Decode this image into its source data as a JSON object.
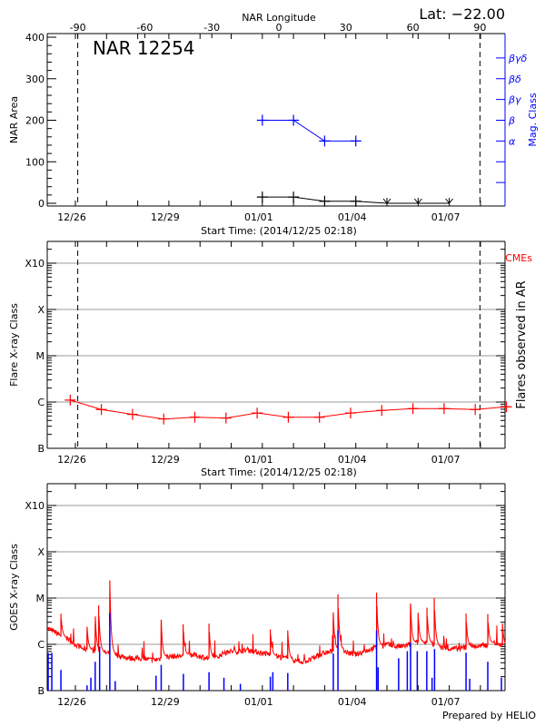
{
  "header": {
    "lat_label": "Lat: −22.00",
    "lon_axis_title": "NAR Longitude",
    "nar_title": "NAR 12254"
  },
  "footer": {
    "credit": "Prepared by HELIO"
  },
  "colors": {
    "area": "#000000",
    "mag_class": "#0000ff",
    "flare": "#ff0000",
    "goes_long": "#ff0000",
    "goes_events": "#0000ff",
    "grid": "#999999"
  },
  "chart_data": [
    {
      "type": "line",
      "id": "nar",
      "xlabel": "Start Time: (2014/12/25 02:18)",
      "ylabel": "NAR Area",
      "y2label": "Mag. Class",
      "top_xlabel": "NAR Longitude",
      "x_range": [
        "2014-12-25T02:18",
        "2014-01-09T19:00"
      ],
      "ylim": [
        0,
        400
      ],
      "yticks": [
        "0",
        "100",
        "200",
        "300",
        "400"
      ],
      "xticks": [
        {
          "label": "12/26",
          "t": "2014-12-26T00:00"
        },
        {
          "label": "12/29",
          "t": "2014-12-29T00:00"
        },
        {
          "label": "01/01",
          "t": "2015-01-01T00:00"
        },
        {
          "label": "01/04",
          "t": "2015-01-04T00:00"
        },
        {
          "label": "01/07",
          "t": "2015-01-07T00:00"
        }
      ],
      "top_xticks": [
        "-90",
        "-60",
        "-30",
        "0",
        "30",
        "60",
        "90"
      ],
      "limb_longitudes": [
        -90,
        90
      ],
      "area_series": [
        {
          "t": "2015-01-01T00:00",
          "v": 15
        },
        {
          "t": "2015-01-02T00:00",
          "v": 15
        },
        {
          "t": "2015-01-03T00:00",
          "v": 5
        },
        {
          "t": "2015-01-04T00:00",
          "v": 5
        },
        {
          "t": "2015-01-05T00:00",
          "v": 0,
          "marker": "arrow"
        },
        {
          "t": "2015-01-06T00:00",
          "v": 0,
          "marker": "arrow"
        },
        {
          "t": "2015-01-07T00:00",
          "v": 0,
          "marker": "arrow"
        }
      ],
      "mag_classes": [
        {
          "label": "α",
          "level": 150
        },
        {
          "label": "β",
          "level": 200
        },
        {
          "label": "βγ",
          "level": 250
        },
        {
          "label": "βδ",
          "level": 300
        },
        {
          "label": "βγδ",
          "level": 350
        }
      ],
      "mag_series": [
        {
          "t": "2015-01-01T00:00",
          "class": "β"
        },
        {
          "t": "2015-01-02T00:00",
          "class": "β"
        },
        {
          "t": "2015-01-03T00:00",
          "class": "α"
        },
        {
          "t": "2015-01-04T00:00",
          "class": "α"
        }
      ]
    },
    {
      "type": "line",
      "id": "flare",
      "xlabel": "Start Time: (2014/12/25 02:18)",
      "ylabel": "Flare X-ray Class",
      "y2label": "Flares observed in AR",
      "legend": "CMEs",
      "yscale": "log",
      "yticks": [
        "B",
        "C",
        "M",
        "X",
        "X10"
      ],
      "grid": true,
      "series": [
        {
          "t": "2014-12-25T20:00",
          "v": "C1.1"
        },
        {
          "t": "2014-12-26T20:00",
          "v": "B6.9"
        },
        {
          "t": "2014-12-27T20:00",
          "v": "B5.4"
        },
        {
          "t": "2014-12-28T20:00",
          "v": "B4.3"
        },
        {
          "t": "2014-12-29T20:00",
          "v": "B4.7"
        },
        {
          "t": "2014-12-30T20:00",
          "v": "B4.5"
        },
        {
          "t": "2014-12-31T20:00",
          "v": "B5.8"
        },
        {
          "t": "2015-01-01T20:00",
          "v": "B4.7"
        },
        {
          "t": "2015-01-02T20:00",
          "v": "B4.7"
        },
        {
          "t": "2015-01-03T20:00",
          "v": "B5.8"
        },
        {
          "t": "2015-01-04T20:00",
          "v": "B6.6"
        },
        {
          "t": "2015-01-05T20:00",
          "v": "B7.2"
        },
        {
          "t": "2015-01-06T20:00",
          "v": "B7.2"
        },
        {
          "t": "2015-01-07T20:00",
          "v": "B6.9"
        },
        {
          "t": "2015-01-08T20:00",
          "v": "B7.9"
        }
      ]
    },
    {
      "type": "line",
      "id": "goes",
      "ylabel": "GOES X-ray Class",
      "yscale": "log",
      "yticks": [
        "B",
        "C",
        "M",
        "X",
        "X10"
      ],
      "grid": true,
      "baseline": [
        [
          "2014-12-25T02:18",
          "C2.2"
        ],
        [
          "2014-12-25T06:00",
          "C2.0"
        ],
        [
          "2014-12-25T12:00",
          "C1.6"
        ],
        [
          "2014-12-25T18:00",
          "C1.3"
        ],
        [
          "2014-12-26T00:00",
          "C1.0"
        ],
        [
          "2014-12-26T06:00",
          "B8.0"
        ],
        [
          "2014-12-26T12:00",
          "B7.5"
        ],
        [
          "2014-12-26T18:00",
          "B7.0"
        ],
        [
          "2014-12-27T00:00",
          "B6.5"
        ],
        [
          "2014-12-27T06:00",
          "B6.0"
        ],
        [
          "2014-12-27T12:00",
          "B5.5"
        ],
        [
          "2014-12-27T18:00",
          "B5.0"
        ],
        [
          "2014-12-28T00:00",
          "B5.0"
        ],
        [
          "2014-12-28T06:00",
          "B4.8"
        ],
        [
          "2014-12-28T12:00",
          "B4.5"
        ],
        [
          "2014-12-28T18:00",
          "B5.0"
        ],
        [
          "2014-12-29T00:00",
          "B5.5"
        ],
        [
          "2014-12-29T06:00",
          "B5.5"
        ],
        [
          "2014-12-29T12:00",
          "B5.8"
        ],
        [
          "2014-12-29T18:00",
          "B6.0"
        ],
        [
          "2014-12-30T00:00",
          "B5.5"
        ],
        [
          "2014-12-30T06:00",
          "B5.0"
        ],
        [
          "2014-12-30T12:00",
          "B5.0"
        ],
        [
          "2014-12-30T18:00",
          "B6.5"
        ],
        [
          "2014-12-31T00:00",
          "B7.0"
        ],
        [
          "2014-12-31T06:00",
          "B7.0"
        ],
        [
          "2014-12-31T12:00",
          "B7.5"
        ],
        [
          "2014-12-31T18:00",
          "B7.0"
        ],
        [
          "2015-01-01T00:00",
          "B6.5"
        ],
        [
          "2015-01-01T06:00",
          "B6.0"
        ],
        [
          "2015-01-01T12:00",
          "B5.5"
        ],
        [
          "2015-01-01T18:00",
          "B5.0"
        ],
        [
          "2015-01-02T00:00",
          "B4.5"
        ],
        [
          "2015-01-02T06:00",
          "B4.2"
        ],
        [
          "2015-01-02T12:00",
          "B4.5"
        ],
        [
          "2015-01-02T18:00",
          "B5.5"
        ],
        [
          "2015-01-03T00:00",
          "B6.5"
        ],
        [
          "2015-01-03T06:00",
          "B7.0"
        ],
        [
          "2015-01-03T12:00",
          "B8.0"
        ],
        [
          "2015-01-03T18:00",
          "B6.5"
        ],
        [
          "2015-01-04T00:00",
          "B6.0"
        ],
        [
          "2015-01-04T06:00",
          "B7.0"
        ],
        [
          "2015-01-04T12:00",
          "B8.0"
        ],
        [
          "2015-01-04T18:00",
          "B9.0"
        ],
        [
          "2015-01-05T00:00",
          "C1.0"
        ],
        [
          "2015-01-05T06:00",
          "B9.0"
        ],
        [
          "2015-01-05T12:00",
          "B9.0"
        ],
        [
          "2015-01-05T18:00",
          "C1.0"
        ],
        [
          "2015-01-06T00:00",
          "C1.1"
        ],
        [
          "2015-01-06T06:00",
          "C1.1"
        ],
        [
          "2015-01-06T12:00",
          "C1.0"
        ],
        [
          "2015-01-06T18:00",
          "B8.5"
        ],
        [
          "2015-01-07T00:00",
          "B8.0"
        ],
        [
          "2015-01-07T06:00",
          "B8.0"
        ],
        [
          "2015-01-07T12:00",
          "B8.5"
        ],
        [
          "2015-01-07T18:00",
          "B9.0"
        ],
        [
          "2015-01-08T00:00",
          "B9.0"
        ],
        [
          "2015-01-08T06:00",
          "C1.0"
        ],
        [
          "2015-01-08T12:00",
          "C1.1"
        ],
        [
          "2015-01-08T18:00",
          "B9.0"
        ],
        [
          "2015-01-09T00:00",
          "B9.5"
        ],
        [
          "2015-01-09T06:00",
          "C1.0"
        ],
        [
          "2015-01-09T12:00",
          "C1.0"
        ],
        [
          "2015-01-09T18:00",
          "C1.0"
        ]
      ],
      "peaks": [
        [
          "2014-12-25T12:50",
          "C4.6"
        ],
        [
          "2014-12-26T09:00",
          "C2.4"
        ],
        [
          "2014-12-26T15:20",
          "C4.0"
        ],
        [
          "2014-12-26T17:55",
          "C6.9"
        ],
        [
          "2014-12-27T02:30",
          "M2.4"
        ],
        [
          "2014-12-28T18:05",
          "C3.4"
        ],
        [
          "2014-12-29T11:00",
          "C2.7"
        ],
        [
          "2014-12-30T06:55",
          "C2.8"
        ],
        [
          "2015-01-01T06:10",
          "C2.1"
        ],
        [
          "2015-01-01T19:35",
          "C2.0"
        ],
        [
          "2015-01-03T06:40",
          "C4.9"
        ],
        [
          "2015-01-03T10:15",
          "M1.2"
        ],
        [
          "2015-01-04T16:00",
          "M1.3"
        ],
        [
          "2015-01-05T18:10",
          "C7.6"
        ],
        [
          "2015-01-06T00:00",
          "C4.8"
        ],
        [
          "2015-01-06T06:50",
          "C6.2"
        ],
        [
          "2015-01-06T12:25",
          "M1.0"
        ],
        [
          "2015-01-07T12:55",
          "C4.6"
        ],
        [
          "2015-01-08T05:40",
          "C4.5"
        ],
        [
          "2015-01-08T17:00",
          "C2.8"
        ]
      ],
      "events": [
        [
          "2014-12-25T03:00",
          "B6.5"
        ],
        [
          "2014-12-25T05:50",
          "B6.5"
        ],
        [
          "2014-12-25T12:50",
          "B2.8"
        ],
        [
          "2014-12-26T09:00",
          "B1.3"
        ],
        [
          "2014-12-26T11:55",
          "B1.9"
        ],
        [
          "2014-12-26T15:15",
          "B4.2"
        ],
        [
          "2014-12-26T18:40",
          "B8.9"
        ],
        [
          "2014-12-27T02:30",
          "C4.8"
        ],
        [
          "2014-12-27T06:40",
          "B1.6"
        ],
        [
          "2014-12-28T14:05",
          "B2.1"
        ],
        [
          "2014-12-28T18:05",
          "B3.6"
        ],
        [
          "2014-12-29T11:10",
          "B2.3"
        ],
        [
          "2014-12-30T06:55",
          "B2.5"
        ],
        [
          "2014-12-30T18:25",
          "B1.9"
        ],
        [
          "2014-12-31T07:05",
          "B1.4"
        ],
        [
          "2015-01-01T06:10",
          "B2.0"
        ],
        [
          "2015-01-01T08:05",
          "B2.5"
        ],
        [
          "2015-01-01T19:35",
          "B2.4"
        ],
        [
          "2015-01-03T06:40",
          "B6.3"
        ],
        [
          "2015-01-03T10:15",
          "C2.0"
        ],
        [
          "2015-01-04T16:00",
          "C2.0"
        ],
        [
          "2015-01-04T17:10",
          "B3.2"
        ],
        [
          "2015-01-05T09:00",
          "B5.0"
        ],
        [
          "2015-01-05T15:40",
          "B7.1"
        ],
        [
          "2015-01-05T18:10",
          "C1.1"
        ],
        [
          "2015-01-05T23:20",
          "B7.1"
        ],
        [
          "2015-01-06T06:40",
          "B7.1"
        ],
        [
          "2015-01-06T10:45",
          "B1.9"
        ],
        [
          "2015-01-06T12:40",
          "B7.9"
        ],
        [
          "2015-01-07T12:55",
          "B6.6"
        ],
        [
          "2015-01-07T15:45",
          "B1.8"
        ],
        [
          "2015-01-08T05:40",
          "B4.2"
        ],
        [
          "2015-01-08T16:10",
          "B1.9"
        ]
      ]
    }
  ]
}
